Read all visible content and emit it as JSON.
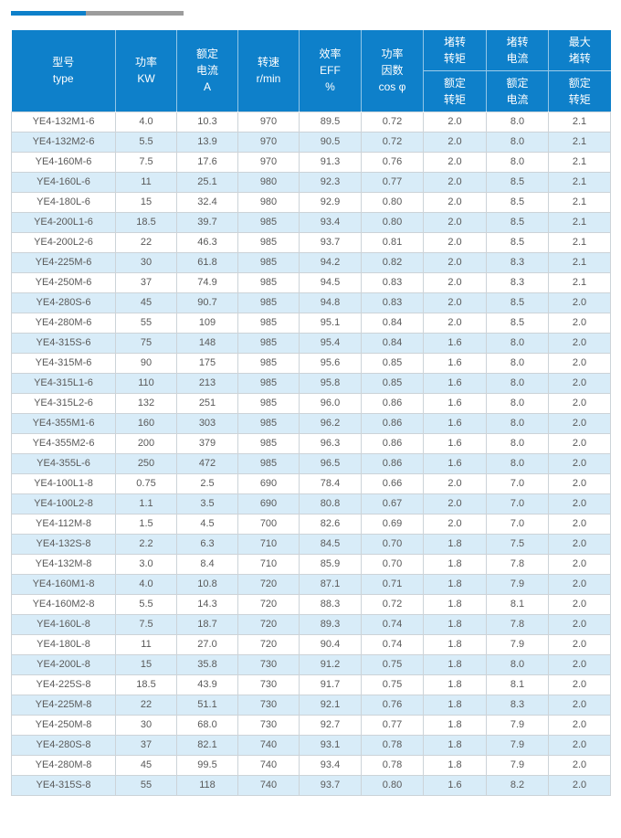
{
  "page": {
    "accent_blue": "#0e80ca",
    "bar_gray": "#9c9c9c",
    "row_alt_blue": "#d8ecf8",
    "border_gray": "#ccd3d8",
    "body_text_color": "#595959"
  },
  "divider": {
    "blue_segment": "",
    "gray_segment": ""
  },
  "table": {
    "header": {
      "model": "型号\ntype",
      "power": "功率\nKW",
      "rated_current": "额定\n电流\nA",
      "speed": "转速\nr/min",
      "efficiency": "效率\nEFF\n%",
      "power_factor": "功率\n因数\ncos φ",
      "locked_torque_top": "堵转\n转矩",
      "locked_torque_bottom": "额定\n转矩",
      "locked_current_top": "堵转\n电流",
      "locked_current_bottom": "额定\n电流",
      "max_torque_top": "最大\n堵转",
      "max_torque_bottom": "额定\n转矩"
    },
    "rows": [
      [
        "YE4-132M1-6",
        "4.0",
        "10.3",
        "970",
        "89.5",
        "0.72",
        "2.0",
        "8.0",
        "2.1"
      ],
      [
        "YE4-132M2-6",
        "5.5",
        "13.9",
        "970",
        "90.5",
        "0.72",
        "2.0",
        "8.0",
        "2.1"
      ],
      [
        "YE4-160M-6",
        "7.5",
        "17.6",
        "970",
        "91.3",
        "0.76",
        "2.0",
        "8.0",
        "2.1"
      ],
      [
        "YE4-160L-6",
        "11",
        "25.1",
        "980",
        "92.3",
        "0.77",
        "2.0",
        "8.5",
        "2.1"
      ],
      [
        "YE4-180L-6",
        "15",
        "32.4",
        "980",
        "92.9",
        "0.80",
        "2.0",
        "8.5",
        "2.1"
      ],
      [
        "YE4-200L1-6",
        "18.5",
        "39.7",
        "985",
        "93.4",
        "0.80",
        "2.0",
        "8.5",
        "2.1"
      ],
      [
        "YE4-200L2-6",
        "22",
        "46.3",
        "985",
        "93.7",
        "0.81",
        "2.0",
        "8.5",
        "2.1"
      ],
      [
        "YE4-225M-6",
        "30",
        "61.8",
        "985",
        "94.2",
        "0.82",
        "2.0",
        "8.3",
        "2.1"
      ],
      [
        "YE4-250M-6",
        "37",
        "74.9",
        "985",
        "94.5",
        "0.83",
        "2.0",
        "8.3",
        "2.1"
      ],
      [
        "YE4-280S-6",
        "45",
        "90.7",
        "985",
        "94.8",
        "0.83",
        "2.0",
        "8.5",
        "2.0"
      ],
      [
        "YE4-280M-6",
        "55",
        "109",
        "985",
        "95.1",
        "0.84",
        "2.0",
        "8.5",
        "2.0"
      ],
      [
        "YE4-315S-6",
        "75",
        "148",
        "985",
        "95.4",
        "0.84",
        "1.6",
        "8.0",
        "2.0"
      ],
      [
        "YE4-315M-6",
        "90",
        "175",
        "985",
        "95.6",
        "0.85",
        "1.6",
        "8.0",
        "2.0"
      ],
      [
        "YE4-315L1-6",
        "110",
        "213",
        "985",
        "95.8",
        "0.85",
        "1.6",
        "8.0",
        "2.0"
      ],
      [
        "YE4-315L2-6",
        "132",
        "251",
        "985",
        "96.0",
        "0.86",
        "1.6",
        "8.0",
        "2.0"
      ],
      [
        "YE4-355M1-6",
        "160",
        "303",
        "985",
        "96.2",
        "0.86",
        "1.6",
        "8.0",
        "2.0"
      ],
      [
        "YE4-355M2-6",
        "200",
        "379",
        "985",
        "96.3",
        "0.86",
        "1.6",
        "8.0",
        "2.0"
      ],
      [
        "YE4-355L-6",
        "250",
        "472",
        "985",
        "96.5",
        "0.86",
        "1.6",
        "8.0",
        "2.0"
      ],
      [
        "YE4-100L1-8",
        "0.75",
        "2.5",
        "690",
        "78.4",
        "0.66",
        "2.0",
        "7.0",
        "2.0"
      ],
      [
        "YE4-100L2-8",
        "1.1",
        "3.5",
        "690",
        "80.8",
        "0.67",
        "2.0",
        "7.0",
        "2.0"
      ],
      [
        "YE4-112M-8",
        "1.5",
        "4.5",
        "700",
        "82.6",
        "0.69",
        "2.0",
        "7.0",
        "2.0"
      ],
      [
        "YE4-132S-8",
        "2.2",
        "6.3",
        "710",
        "84.5",
        "0.70",
        "1.8",
        "7.5",
        "2.0"
      ],
      [
        "YE4-132M-8",
        "3.0",
        "8.4",
        "710",
        "85.9",
        "0.70",
        "1.8",
        "7.8",
        "2.0"
      ],
      [
        "YE4-160M1-8",
        "4.0",
        "10.8",
        "720",
        "87.1",
        "0.71",
        "1.8",
        "7.9",
        "2.0"
      ],
      [
        "YE4-160M2-8",
        "5.5",
        "14.3",
        "720",
        "88.3",
        "0.72",
        "1.8",
        "8.1",
        "2.0"
      ],
      [
        "YE4-160L-8",
        "7.5",
        "18.7",
        "720",
        "89.3",
        "0.74",
        "1.8",
        "7.8",
        "2.0"
      ],
      [
        "YE4-180L-8",
        "11",
        "27.0",
        "720",
        "90.4",
        "0.74",
        "1.8",
        "7.9",
        "2.0"
      ],
      [
        "YE4-200L-8",
        "15",
        "35.8",
        "730",
        "91.2",
        "0.75",
        "1.8",
        "8.0",
        "2.0"
      ],
      [
        "YE4-225S-8",
        "18.5",
        "43.9",
        "730",
        "91.7",
        "0.75",
        "1.8",
        "8.1",
        "2.0"
      ],
      [
        "YE4-225M-8",
        "22",
        "51.1",
        "730",
        "92.1",
        "0.76",
        "1.8",
        "8.3",
        "2.0"
      ],
      [
        "YE4-250M-8",
        "30",
        "68.0",
        "730",
        "92.7",
        "0.77",
        "1.8",
        "7.9",
        "2.0"
      ],
      [
        "YE4-280S-8",
        "37",
        "82.1",
        "740",
        "93.1",
        "0.78",
        "1.8",
        "7.9",
        "2.0"
      ],
      [
        "YE4-280M-8",
        "45",
        "99.5",
        "740",
        "93.4",
        "0.78",
        "1.8",
        "7.9",
        "2.0"
      ],
      [
        "YE4-315S-8",
        "55",
        "118",
        "740",
        "93.7",
        "0.80",
        "1.6",
        "8.2",
        "2.0"
      ]
    ]
  }
}
